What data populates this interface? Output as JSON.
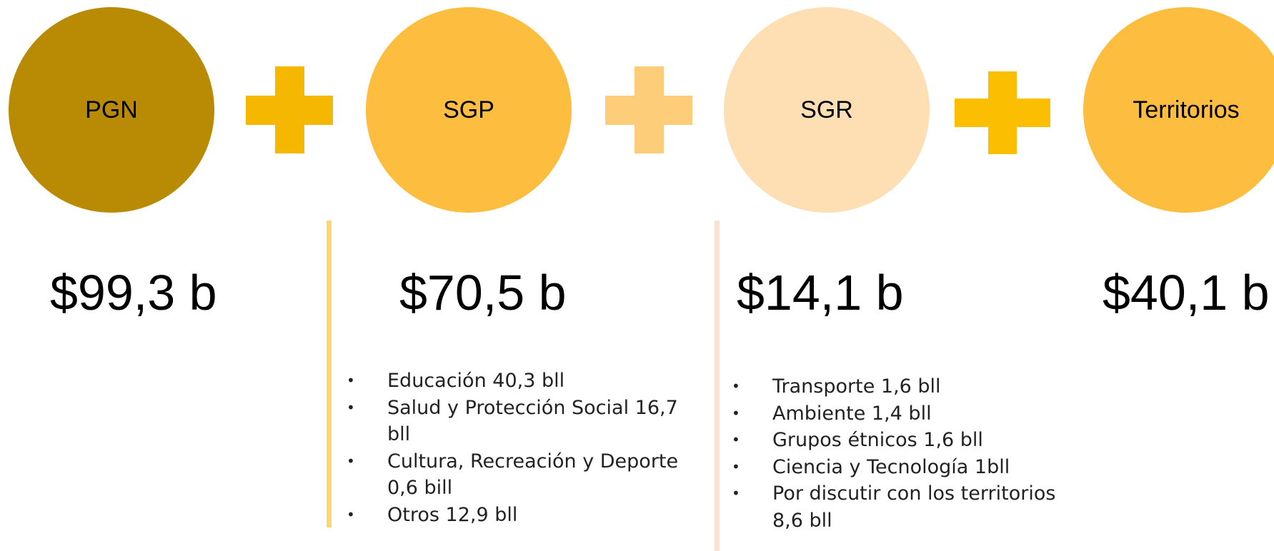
{
  "items": [
    {
      "label": "PGN",
      "amount": "$99,3 b",
      "details": []
    },
    {
      "label": "SGP",
      "amount": "$70,5 b",
      "details": [
        "Educación 40,3 bll",
        "Salud y Protección Social 16,7 bll",
        "Cultura, Recreación y Deporte 0,6 bill",
        "Otros 12,9 bll"
      ]
    },
    {
      "label": "SGR",
      "amount": "$14,1 b",
      "details": [
        "Transporte 1,6 bll",
        "Ambiente 1,4 bll",
        "Grupos étnicos 1,6 bll",
        "Ciencia y Tecnología 1bll",
        "Por discutir con los territorios 8,6 bll"
      ]
    },
    {
      "label": "Territorios",
      "amount": "$40,1 b",
      "details": []
    }
  ]
}
